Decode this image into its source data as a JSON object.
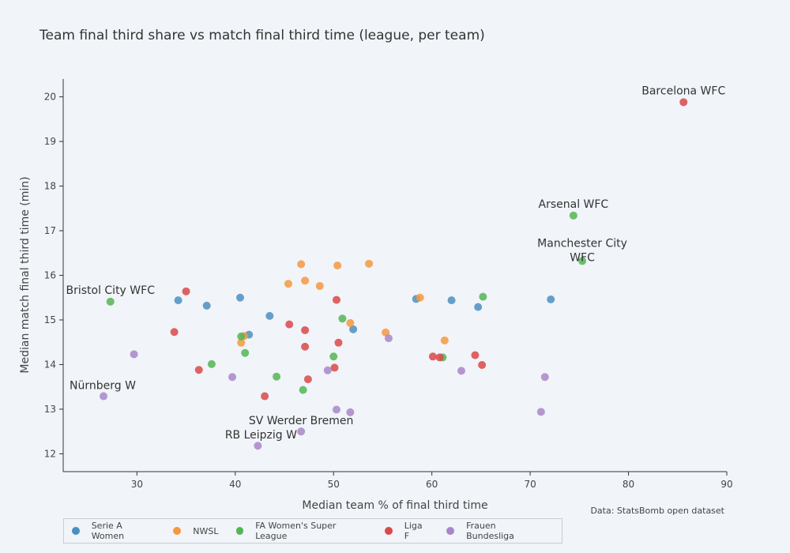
{
  "chart_data": {
    "type": "scatter",
    "title": "Team final third share vs match final third time (league, per team)",
    "xlabel": "Median team % of final third time",
    "ylabel": "Median match final third time (min)",
    "xlim": [
      22.5,
      90
    ],
    "ylim": [
      11.6,
      20.4
    ],
    "xticks": [
      30,
      40,
      50,
      60,
      70,
      80,
      90
    ],
    "yticks": [
      12,
      13,
      14,
      15,
      16,
      17,
      18,
      19,
      20
    ],
    "grid": false,
    "legend_position": "bottom",
    "source": "Data: StatsBomb open dataset",
    "series": [
      {
        "name": "Serie A Women",
        "color": "#4c8fc1",
        "points": [
          [
            34.2,
            15.44
          ],
          [
            37.1,
            15.32
          ],
          [
            40.5,
            15.5
          ],
          [
            43.5,
            15.09
          ],
          [
            41.4,
            14.67
          ],
          [
            52.0,
            14.79
          ],
          [
            58.4,
            15.47
          ],
          [
            62.0,
            15.44
          ],
          [
            64.7,
            15.29
          ],
          [
            72.1,
            15.46
          ]
        ]
      },
      {
        "name": "NWSL",
        "color": "#f5983f",
        "points": [
          [
            45.4,
            15.81
          ],
          [
            46.7,
            16.25
          ],
          [
            47.1,
            15.88
          ],
          [
            48.6,
            15.76
          ],
          [
            50.4,
            16.22
          ],
          [
            53.6,
            16.26
          ],
          [
            40.6,
            14.49
          ],
          [
            40.9,
            14.64
          ],
          [
            51.7,
            14.93
          ],
          [
            55.3,
            14.72
          ],
          [
            58.8,
            15.5
          ],
          [
            61.3,
            14.54
          ]
        ]
      },
      {
        "name": "FA Women's Super League",
        "color": "#53b553",
        "points": [
          [
            27.3,
            15.41
          ],
          [
            37.6,
            14.01
          ],
          [
            40.6,
            14.63
          ],
          [
            41.0,
            14.26
          ],
          [
            44.2,
            13.73
          ],
          [
            46.9,
            13.43
          ],
          [
            50.9,
            15.03
          ],
          [
            50.0,
            14.18
          ],
          [
            61.1,
            14.16
          ],
          [
            65.2,
            15.52
          ],
          [
            74.4,
            17.34
          ],
          [
            75.3,
            16.32
          ]
        ]
      },
      {
        "name": "Liga F",
        "color": "#d9484a",
        "points": [
          [
            33.8,
            14.73
          ],
          [
            35.0,
            15.64
          ],
          [
            36.3,
            13.88
          ],
          [
            43.0,
            13.29
          ],
          [
            45.5,
            14.9
          ],
          [
            47.1,
            14.77
          ],
          [
            47.1,
            14.4
          ],
          [
            47.4,
            13.67
          ],
          [
            50.1,
            13.93
          ],
          [
            50.3,
            15.45
          ],
          [
            50.5,
            14.49
          ],
          [
            60.1,
            14.18
          ],
          [
            60.8,
            14.16
          ],
          [
            64.4,
            14.21
          ],
          [
            65.1,
            13.99
          ],
          [
            85.6,
            19.88
          ]
        ]
      },
      {
        "name": "Frauen Bundesliga",
        "color": "#a986c9",
        "points": [
          [
            26.6,
            13.29
          ],
          [
            29.7,
            14.23
          ],
          [
            39.7,
            13.72
          ],
          [
            42.3,
            12.18
          ],
          [
            46.7,
            12.5
          ],
          [
            49.4,
            13.87
          ],
          [
            50.3,
            12.99
          ],
          [
            51.7,
            12.93
          ],
          [
            55.6,
            14.59
          ],
          [
            63.0,
            13.86
          ],
          [
            71.1,
            12.94
          ],
          [
            71.5,
            13.72
          ]
        ]
      }
    ],
    "annotations": [
      {
        "text": "Barcelona WFC",
        "x": 85.6,
        "y": 19.88,
        "anchor": "middle"
      },
      {
        "text": "Arsenal WFC",
        "x": 74.4,
        "y": 17.34,
        "anchor": "middle"
      },
      {
        "text": "Manchester City",
        "x": 75.3,
        "y": 16.32,
        "anchor": "middle",
        "line": 1
      },
      {
        "text": "WFC",
        "x": 75.3,
        "y": 16.32,
        "anchor": "middle",
        "line": 2
      },
      {
        "text": "Bristol City WFC",
        "x": 27.3,
        "y": 15.41,
        "anchor": "middle"
      },
      {
        "text": "Nürnberg W",
        "x": 26.6,
        "y": 13.29,
        "anchor": "middle"
      },
      {
        "text": "SV Werder Bremen",
        "x": 46.7,
        "y": 12.5,
        "anchor": "middle"
      },
      {
        "text": "RB Leipzig W",
        "x": 42.3,
        "y": 12.18,
        "anchor": "middle"
      }
    ]
  }
}
